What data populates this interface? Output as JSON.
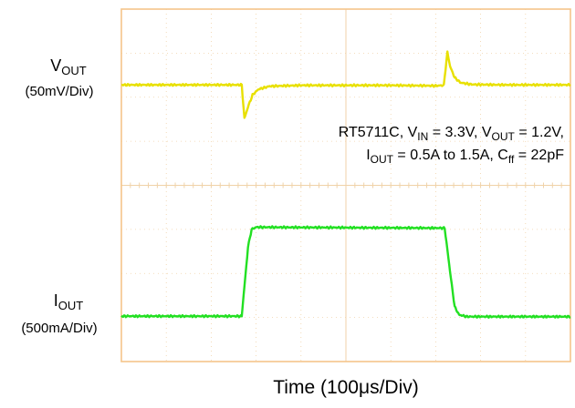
{
  "chart_data": {
    "type": "line",
    "title": "",
    "xlabel": "Time (100μs/Div)",
    "x_divisions": 10,
    "y_divisions": 8,
    "grid": true,
    "colors": {
      "vout": "#e8e000",
      "iout": "#22e022",
      "frame": "#f5c58a",
      "grid": "#f0d2a8"
    },
    "annotation": {
      "line1": [
        "RT5711C, V",
        "IN",
        " = 3.3V, V",
        "OUT",
        " = 1.2V,"
      ],
      "line2": [
        "I",
        "OUT",
        " = 0.5A to 1.5A, C",
        "ff",
        " = 22pF"
      ]
    },
    "series": [
      {
        "name": "VOUT",
        "label_main": "V",
        "label_sub": "OUT",
        "scale": "(50mV/Div)",
        "x_div": [
          0,
          2.68,
          2.74,
          2.82,
          2.92,
          3.05,
          3.3,
          4.0,
          6.0,
          7.0,
          7.18,
          7.26,
          7.32,
          7.42,
          7.55,
          7.8,
          8.5,
          10
        ],
        "y_div": [
          6.28,
          6.28,
          5.52,
          5.78,
          6.05,
          6.18,
          6.25,
          6.27,
          6.27,
          6.26,
          6.27,
          7.02,
          6.7,
          6.45,
          6.33,
          6.29,
          6.28,
          6.28
        ]
      },
      {
        "name": "IOUT",
        "label_main": "I",
        "label_sub": "OUT",
        "scale": "(500mA/Div)",
        "x_div": [
          0,
          2.68,
          2.82,
          2.9,
          3.0,
          7.2,
          7.3,
          7.42,
          7.52,
          7.7,
          10
        ],
        "y_div": [
          1.03,
          1.03,
          2.6,
          3.0,
          3.05,
          3.03,
          2.2,
          1.25,
          1.06,
          1.02,
          1.02
        ]
      }
    ]
  }
}
